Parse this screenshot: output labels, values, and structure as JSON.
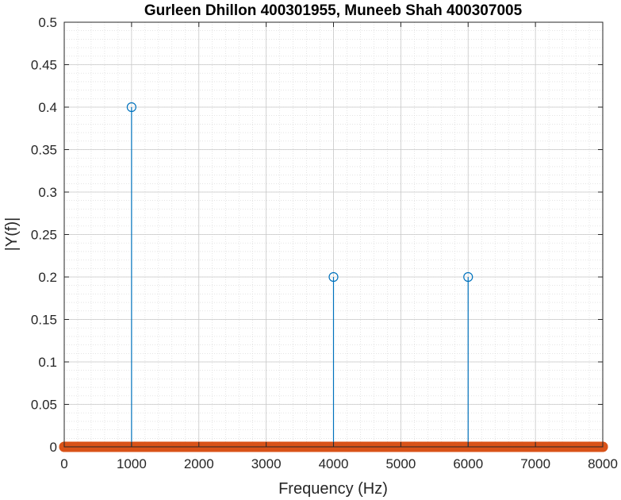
{
  "chart_data": {
    "type": "stem",
    "title": "Gurleen Dhillon 400301955, Muneeb Shah 400307005",
    "xlabel": "Frequency (Hz)",
    "ylabel": "|Y(f)|",
    "xlim": [
      0,
      8000
    ],
    "ylim": [
      0,
      0.5
    ],
    "xticks": [
      0,
      1000,
      2000,
      3000,
      4000,
      5000,
      6000,
      7000,
      8000
    ],
    "yticks": [
      0,
      0.05,
      0.1,
      0.15,
      0.2,
      0.25,
      0.3,
      0.35,
      0.4,
      0.45,
      0.5
    ],
    "xtick_labels": [
      "0",
      "1000",
      "2000",
      "3000",
      "4000",
      "5000",
      "6000",
      "7000",
      "8000"
    ],
    "ytick_labels": [
      "0",
      "0.05",
      "0.1",
      "0.15",
      "0.2",
      "0.25",
      "0.3",
      "0.35",
      "0.4",
      "0.45",
      "0.5"
    ],
    "grid": true,
    "minor_grid": true,
    "series": [
      {
        "x": [
          1000,
          4000,
          6000
        ],
        "y": [
          0.4,
          0.2,
          0.2
        ],
        "color": "#0072BD",
        "marker": "circle-open"
      },
      {
        "x_range": [
          0,
          8000
        ],
        "y_value": 0,
        "color": "#D95319",
        "marker": "circle-filled-dense"
      }
    ]
  }
}
